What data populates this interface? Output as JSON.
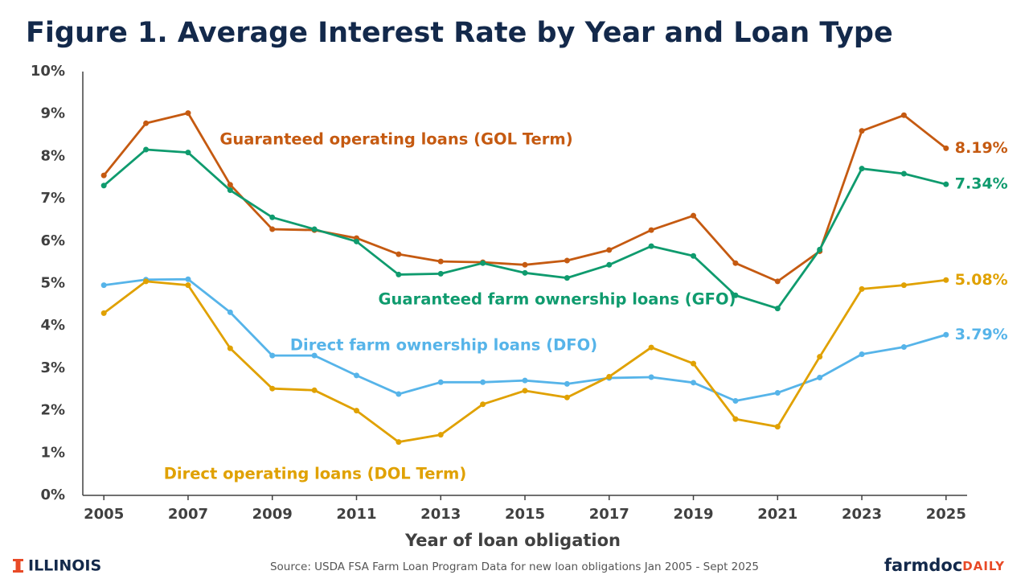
{
  "chart_data": {
    "type": "line",
    "title": "Figure 1. Average Interest Rate by Year and Loan Type",
    "x_label": "Year of loan obligation",
    "source": "Source: USDA FSA Farm Loan Program Data for new loan obligations Jan 2005 - Sept 2025",
    "x": [
      2005,
      2006,
      2007,
      2008,
      2009,
      2010,
      2011,
      2012,
      2013,
      2014,
      2015,
      2016,
      2017,
      2018,
      2019,
      2020,
      2021,
      2022,
      2023,
      2024,
      2025
    ],
    "xlim": [
      2004.5,
      2025.5
    ],
    "xticks": [
      2005,
      2007,
      2009,
      2011,
      2013,
      2015,
      2017,
      2019,
      2021,
      2023,
      2025
    ],
    "ylim": [
      0,
      10
    ],
    "yticks": [
      {
        "value": 0,
        "label": "0%"
      },
      {
        "value": 1,
        "label": "1%"
      },
      {
        "value": 2,
        "label": "2%"
      },
      {
        "value": 3,
        "label": "3%"
      },
      {
        "value": 4,
        "label": "4%"
      },
      {
        "value": 5,
        "label": "5%"
      },
      {
        "value": 6,
        "label": "6%"
      },
      {
        "value": 7,
        "label": "7%"
      },
      {
        "value": 8,
        "label": "8%"
      },
      {
        "value": 9,
        "label": "9%"
      },
      {
        "value": 10,
        "label": "10%"
      }
    ],
    "grid": false,
    "series": [
      {
        "name": "Guaranteed operating loans (GOL Term)",
        "color": "#c55a11",
        "values": [
          7.55,
          8.78,
          9.02,
          7.33,
          6.28,
          6.26,
          6.07,
          5.69,
          5.52,
          5.5,
          5.44,
          5.54,
          5.79,
          6.26,
          6.6,
          5.48,
          5.05,
          5.76,
          8.6,
          8.97,
          8.19
        ],
        "value_labels": [
          null,
          null,
          null,
          null,
          null,
          null,
          null,
          null,
          null,
          null,
          null,
          null,
          null,
          null,
          null,
          null,
          null,
          null,
          null,
          null,
          "8.19%"
        ]
      },
      {
        "name": "Guaranteed farm ownership loans (GFO)",
        "color": "#0f9b6e",
        "values": [
          7.31,
          8.16,
          8.09,
          7.2,
          6.56,
          6.28,
          5.99,
          5.21,
          5.23,
          5.48,
          5.25,
          5.13,
          5.44,
          5.88,
          5.65,
          4.72,
          4.41,
          5.8,
          7.71,
          7.59,
          7.34
        ],
        "value_labels": [
          null,
          null,
          null,
          null,
          null,
          null,
          null,
          null,
          null,
          null,
          null,
          null,
          null,
          null,
          null,
          null,
          null,
          null,
          null,
          null,
          "7.34%"
        ]
      },
      {
        "name": "Direct farm ownership loans (DFO)",
        "color": "#56b4e9",
        "values": [
          4.96,
          5.09,
          5.1,
          4.32,
          3.3,
          3.3,
          2.83,
          2.39,
          2.67,
          2.67,
          2.71,
          2.63,
          2.77,
          2.79,
          2.66,
          2.23,
          2.42,
          2.78,
          3.33,
          3.5,
          3.79
        ],
        "value_labels": [
          null,
          null,
          null,
          null,
          null,
          null,
          null,
          null,
          null,
          null,
          null,
          null,
          null,
          null,
          null,
          null,
          null,
          null,
          null,
          null,
          "3.79%"
        ]
      },
      {
        "name": "Direct operating loans (DOL Term)",
        "color": "#e0a100",
        "values": [
          4.3,
          5.05,
          4.96,
          3.47,
          2.52,
          2.48,
          2.0,
          1.26,
          1.43,
          2.15,
          2.47,
          2.31,
          2.8,
          3.49,
          3.11,
          1.8,
          1.62,
          3.27,
          4.87,
          4.96,
          5.08
        ],
        "value_labels": [
          null,
          null,
          null,
          null,
          null,
          null,
          null,
          null,
          null,
          null,
          null,
          null,
          null,
          null,
          null,
          null,
          null,
          null,
          null,
          null,
          "5.08%"
        ]
      }
    ]
  },
  "branding": {
    "left": "ILLINOIS",
    "right": [
      "farmdoc",
      "DAILY"
    ]
  }
}
